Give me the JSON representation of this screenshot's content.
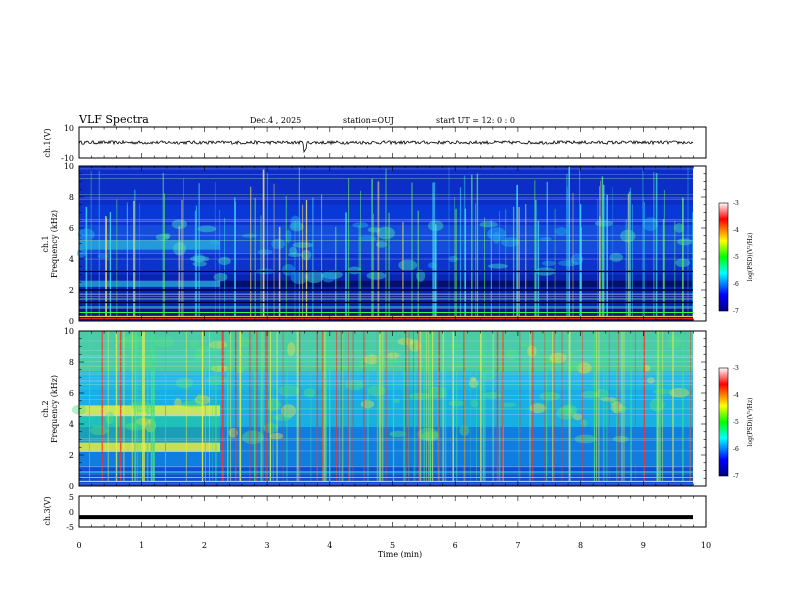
{
  "header": {
    "title": "VLF Spectra",
    "date": "Dec.4 , 2025",
    "station": "station=OUJ",
    "start_ut": "start  UT  =   12: 0  : 0"
  },
  "chart_data": [
    {
      "id": "ch1-waveform",
      "type": "line",
      "ylabel": "ch.1(V)",
      "ylim": [
        -10,
        10
      ],
      "y_ticks": [
        "10",
        "-10"
      ],
      "baseline_value": 0,
      "note": "dense noisy waveform centered near 0 V"
    },
    {
      "id": "ch1-spectrogram",
      "type": "heatmap",
      "ylabel": "ch.1\nFrequency (kHz)",
      "ylabel_lines": [
        "ch.1",
        "Frequency (kHz)"
      ],
      "ylim": [
        0,
        10
      ],
      "y_ticks": [
        "0",
        "2",
        "4",
        "6",
        "8",
        "10"
      ],
      "colorbar": {
        "label": "log(PSD)(V²/Hz)",
        "range": [
          -7,
          -3
        ],
        "ticks": [
          "-3",
          "-4",
          "-5",
          "-6",
          "-7"
        ]
      }
    },
    {
      "id": "ch2-spectrogram",
      "type": "heatmap",
      "ylabel_lines": [
        "ch.2",
        "Frequency (kHz)"
      ],
      "ylim": [
        0,
        10
      ],
      "y_ticks": [
        "0",
        "2",
        "4",
        "6",
        "8",
        "10"
      ],
      "colorbar": {
        "label": "log(PSD)(V²/Hz)",
        "range": [
          -7,
          -3
        ],
        "ticks": [
          "-3",
          "-4",
          "-5",
          "-6",
          "-7"
        ]
      }
    },
    {
      "id": "ch3-waveform",
      "type": "line",
      "ylabel": "ch.3(V)",
      "ylim": [
        -5,
        5
      ],
      "y_ticks": [
        "5",
        "0",
        "-5"
      ],
      "baseline_value": -1.8,
      "note": "flat thick trace"
    }
  ],
  "x_axis": {
    "label": "Time  (min)",
    "range": [
      0,
      10
    ],
    "ticks": [
      "0",
      "1",
      "2",
      "3",
      "4",
      "5",
      "6",
      "7",
      "8",
      "9",
      "10"
    ]
  }
}
